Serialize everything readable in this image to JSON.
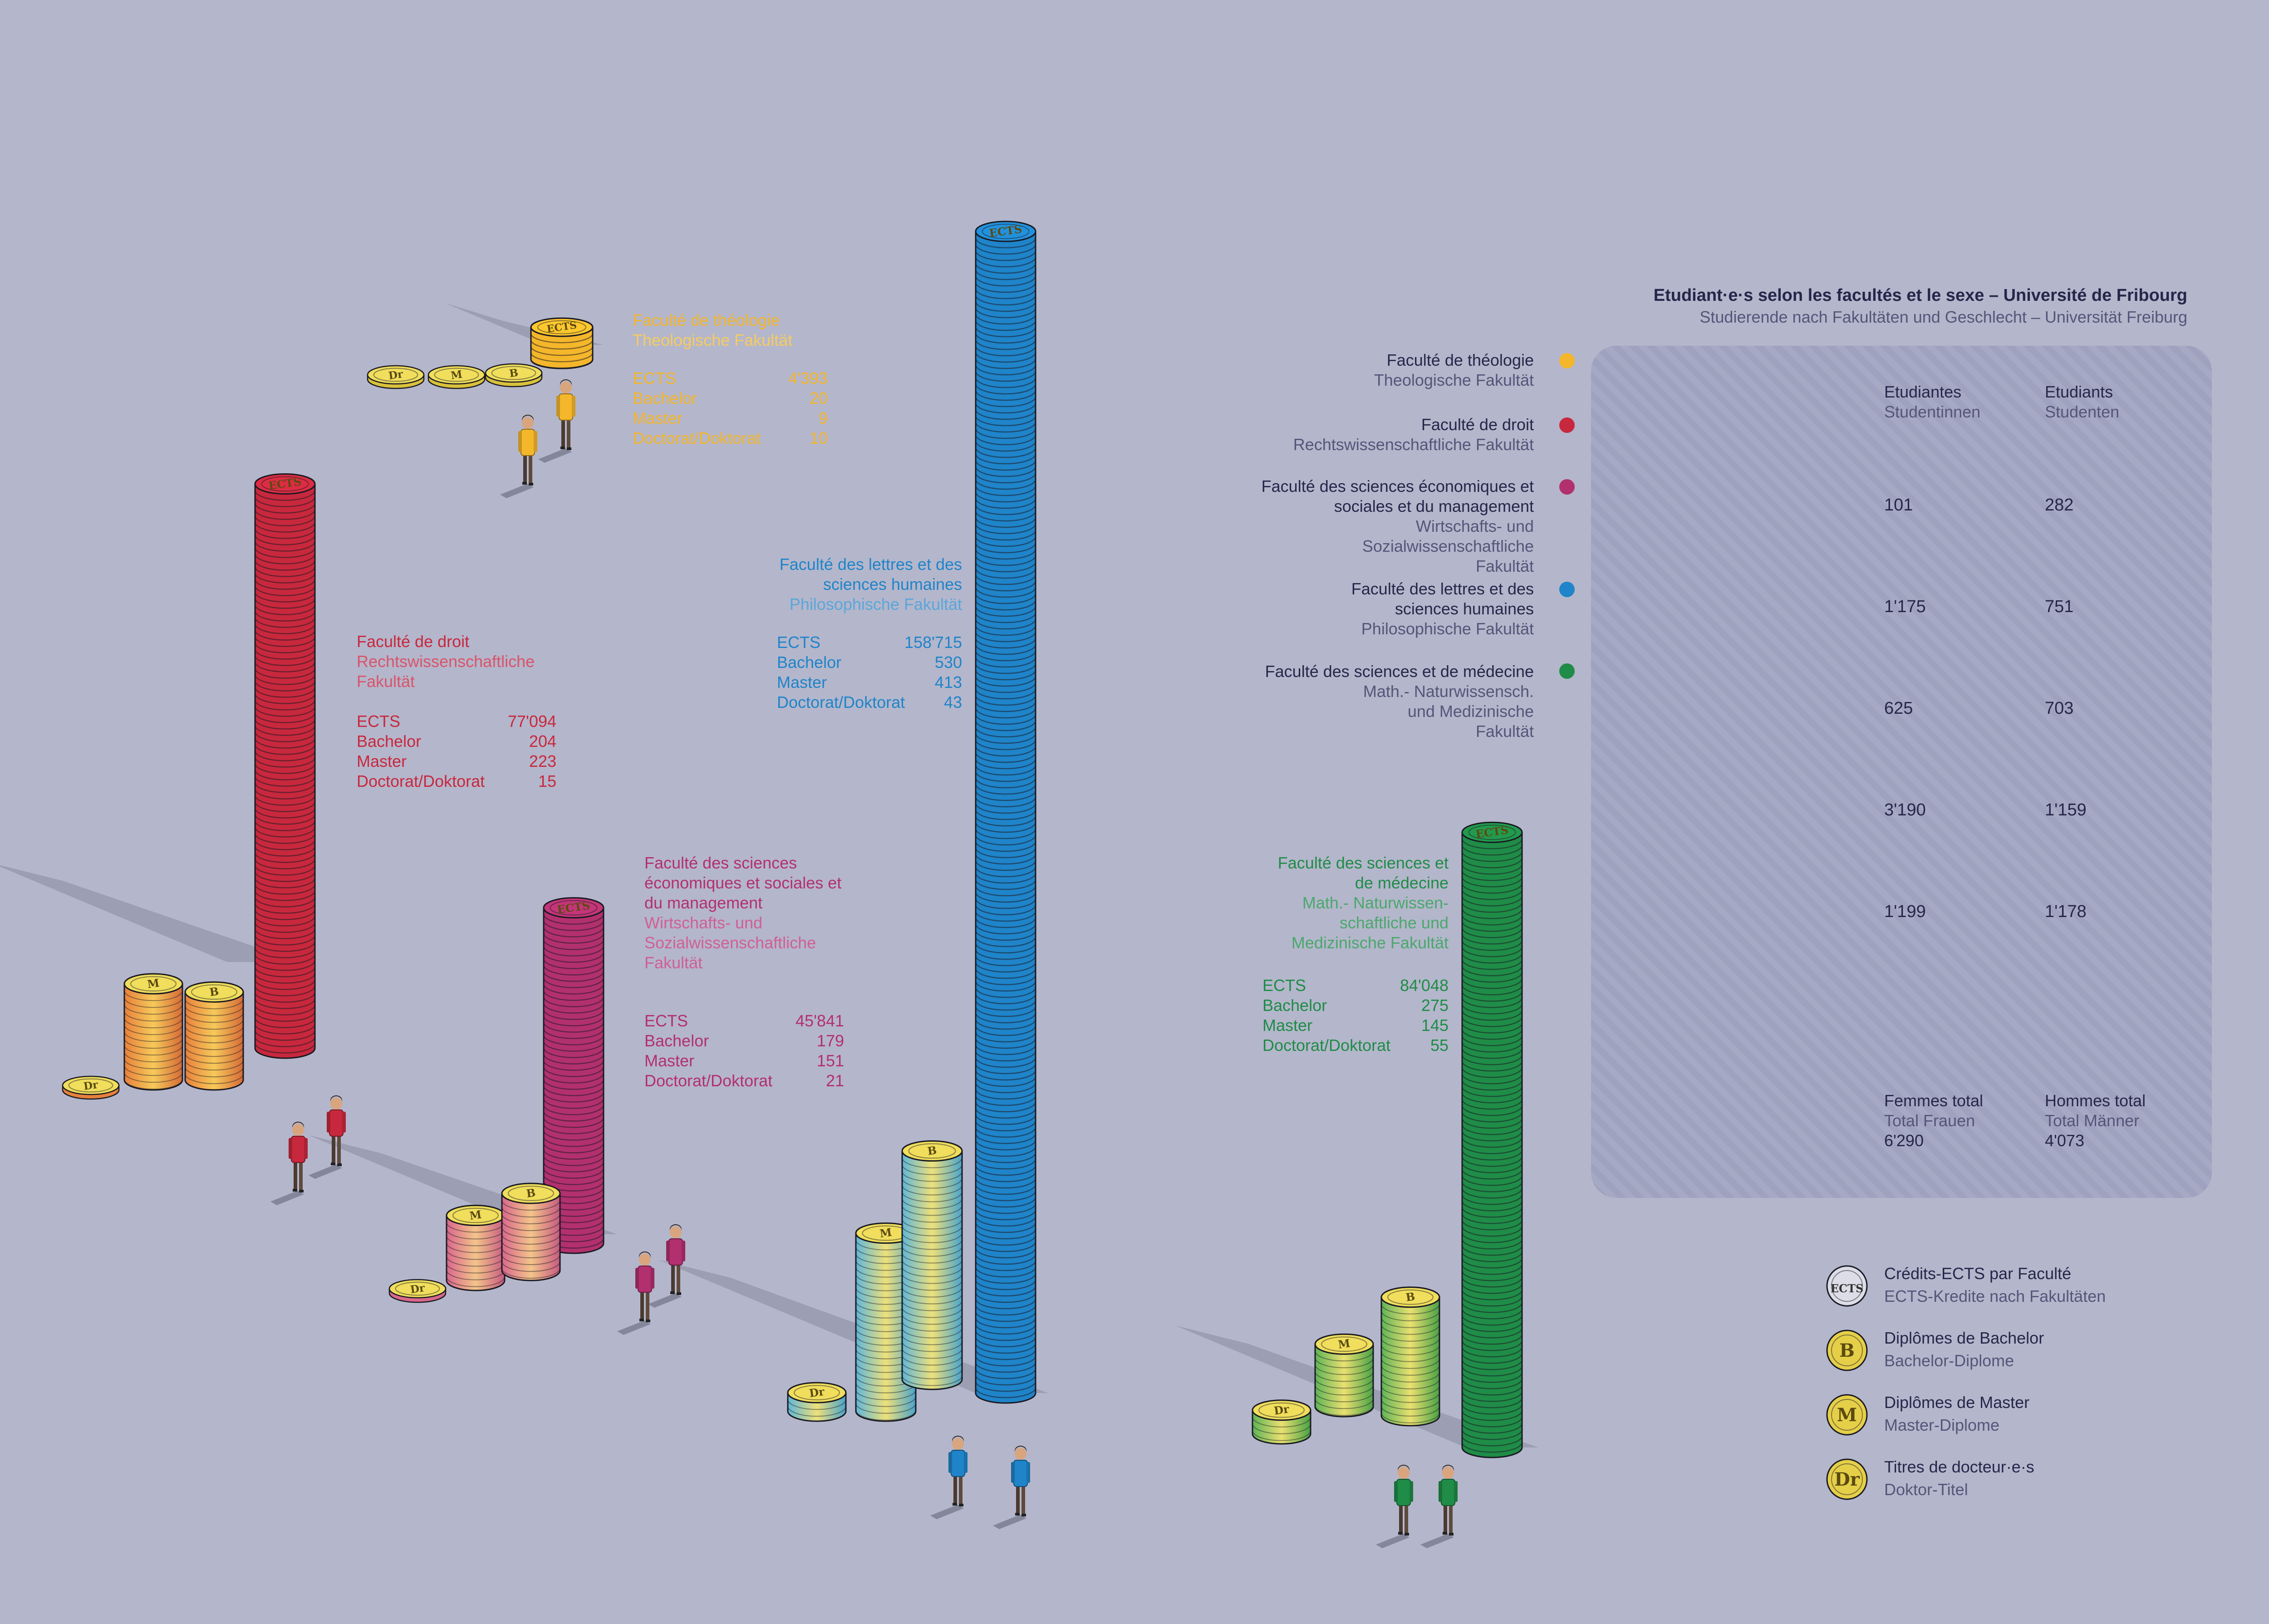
{
  "title": "Etudiant·e·s selon les facultés et le sexe – Université de Fribourg",
  "subtitle": "Studierende nach Fakultäten und Geschlecht – Universität Freiburg",
  "colors": {
    "background": "#b4b6cb",
    "theologie": "#f4b62a",
    "droit": "#c8283d",
    "economie": "#b2306e",
    "lettres": "#1f84c9",
    "sciences": "#1f8c47",
    "coin_gold": "#e8d04a"
  },
  "faculties": [
    {
      "key": "theologie",
      "name_fr": "Faculté de théologie",
      "name_de": "Theologische Fakultät",
      "legend_fr": "Faculté de théologie",
      "legend_de": "Theologische Fakultät",
      "ects": "4'393",
      "bachelor": "20",
      "master": "9",
      "doctorat": "10",
      "women": "101",
      "men": "282"
    },
    {
      "key": "droit",
      "name_fr": "Faculté de droit",
      "name_de": "Rechtswissenschaftliche Fakultät",
      "legend_fr": "Faculté de droit",
      "legend_de": "Rechtswissenschaftliche Fakultät",
      "ects": "77'094",
      "bachelor": "204",
      "master": "223",
      "doctorat": "15",
      "women": "1'175",
      "men": "751"
    },
    {
      "key": "economie",
      "name_fr": "Faculté des sciences économiques et sociales et du management",
      "name_de": "Wirtschafts- und Sozialwissenschaftliche Fakultät",
      "legend_fr": "Faculté des sciences économiques et sociales et du management",
      "legend_de": "Wirtschafts- und Sozialwissenschaftliche Fakultät",
      "ects": "45'841",
      "bachelor": "179",
      "master": "151",
      "doctorat": "21",
      "women": "625",
      "men": "703"
    },
    {
      "key": "lettres",
      "name_fr": "Faculté des lettres et des sciences humaines",
      "name_de": "Philosophische Fakultät",
      "legend_fr": "Faculté des lettres et des sciences humaines",
      "legend_de": "Philosophische Fakultät",
      "ects": "158'715",
      "bachelor": "530",
      "master": "413",
      "doctorat": "43",
      "women": "3'190",
      "men": "1'159"
    },
    {
      "key": "sciences",
      "name_fr": "Faculté des sciences et de médecine",
      "name_de": "Math.- Naturwissen- schaftliche und Medizinische Fakultät",
      "legend_fr": "Faculté des sciences et de médecine",
      "legend_de": "Math.- Naturwissensch. und Medizinische Fakultät",
      "ects": "84'048",
      "bachelor": "275",
      "master": "145",
      "doctorat": "55",
      "women": "1'199",
      "men": "1'178"
    }
  ],
  "stat_labels": {
    "ects": "ECTS",
    "bachelor": "Bachelor",
    "master": "Master",
    "doctorat": "Doctorat/Doktorat"
  },
  "gender_panel": {
    "women_head_fr": "Etudiantes",
    "women_head_de": "Studentinnen",
    "men_head_fr": "Etudiants",
    "men_head_de": "Studenten",
    "women_total_fr": "Femmes total",
    "women_total_de": "Total Frauen",
    "women_total": "6'290",
    "men_total_fr": "Hommes total",
    "men_total_de": "Total Männer",
    "men_total": "4'073"
  },
  "key": [
    {
      "coin": "ECTS",
      "fr": "Crédits-ECTS par Faculté",
      "de": "ECTS-Kredite nach Fakultäten"
    },
    {
      "coin": "B",
      "fr": "Diplômes de Bachelor",
      "de": "Bachelor-Diplome"
    },
    {
      "coin": "M",
      "fr": "Diplômes de Master",
      "de": "Master-Diplome"
    },
    {
      "coin": "Dr",
      "fr": "Titres de docteur·e·s",
      "de": "Doktor-Titel"
    }
  ],
  "chart_data": {
    "type": "bar",
    "title": "Etudiant·e·s selon les facultés et le sexe – Université de Fribourg",
    "subtitle": "Studierende nach Fakultäten und Geschlecht – Universität Freiburg",
    "categories": [
      "Faculté de théologie",
      "Faculté de droit",
      "Faculté des sciences économiques et sociales et du management",
      "Faculté des lettres et des sciences humaines",
      "Faculté des sciences et de médecine"
    ],
    "series": [
      {
        "name": "Crédits-ECTS par Faculté",
        "values": [
          4393,
          77094,
          45841,
          158715,
          84048
        ]
      },
      {
        "name": "Diplômes de Bachelor",
        "values": [
          20,
          204,
          179,
          530,
          275
        ]
      },
      {
        "name": "Diplômes de Master",
        "values": [
          9,
          223,
          151,
          413,
          145
        ]
      },
      {
        "name": "Titres de docteur·e·s",
        "values": [
          10,
          15,
          21,
          43,
          55
        ]
      },
      {
        "name": "Etudiantes",
        "values": [
          101,
          1175,
          625,
          3190,
          1199
        ]
      },
      {
        "name": "Etudiants",
        "values": [
          282,
          751,
          703,
          1159,
          1178
        ]
      }
    ],
    "totals": {
      "Femmes total": 6290,
      "Hommes total": 4073
    },
    "grid": false
  }
}
